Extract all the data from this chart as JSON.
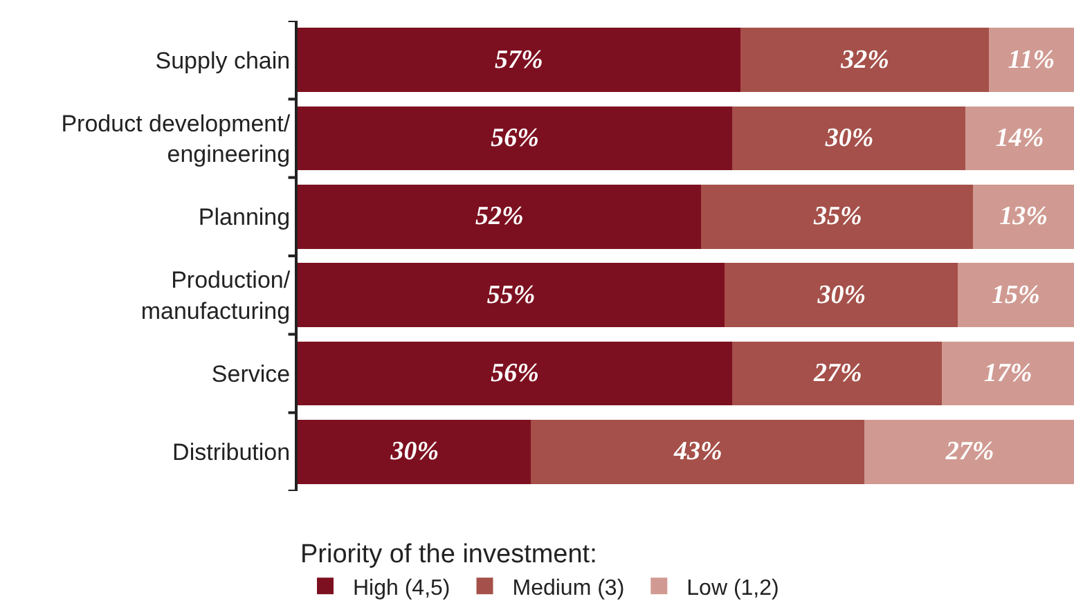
{
  "chart_data": {
    "type": "bar",
    "orientation": "horizontal",
    "stacked": true,
    "categories": [
      "Supply chain",
      "Product development/\nengineering",
      "Planning",
      "Production/\nmanufacturing",
      "Service",
      "Distribution"
    ],
    "series": [
      {
        "name": "High (4,5)",
        "color": "#7d1020",
        "values": [
          57,
          56,
          52,
          55,
          56,
          30
        ],
        "value_labels": [
          "57%",
          "56%",
          "52%",
          "55%",
          "56%",
          "30%"
        ]
      },
      {
        "name": "Medium (3)",
        "color": "#a5504a",
        "values": [
          32,
          30,
          35,
          30,
          27,
          43
        ],
        "value_labels": [
          "32%",
          "30%",
          "35%",
          "30%",
          "27%",
          "43%"
        ]
      },
      {
        "name": "Low (1,2)",
        "color": "#d09a92",
        "values": [
          11,
          14,
          13,
          15,
          17,
          27
        ],
        "value_labels": [
          "11%",
          "14%",
          "13%",
          "15%",
          "17%",
          "27%"
        ]
      }
    ],
    "legend_title": "Priority of the investment:",
    "legend": "bottom"
  }
}
